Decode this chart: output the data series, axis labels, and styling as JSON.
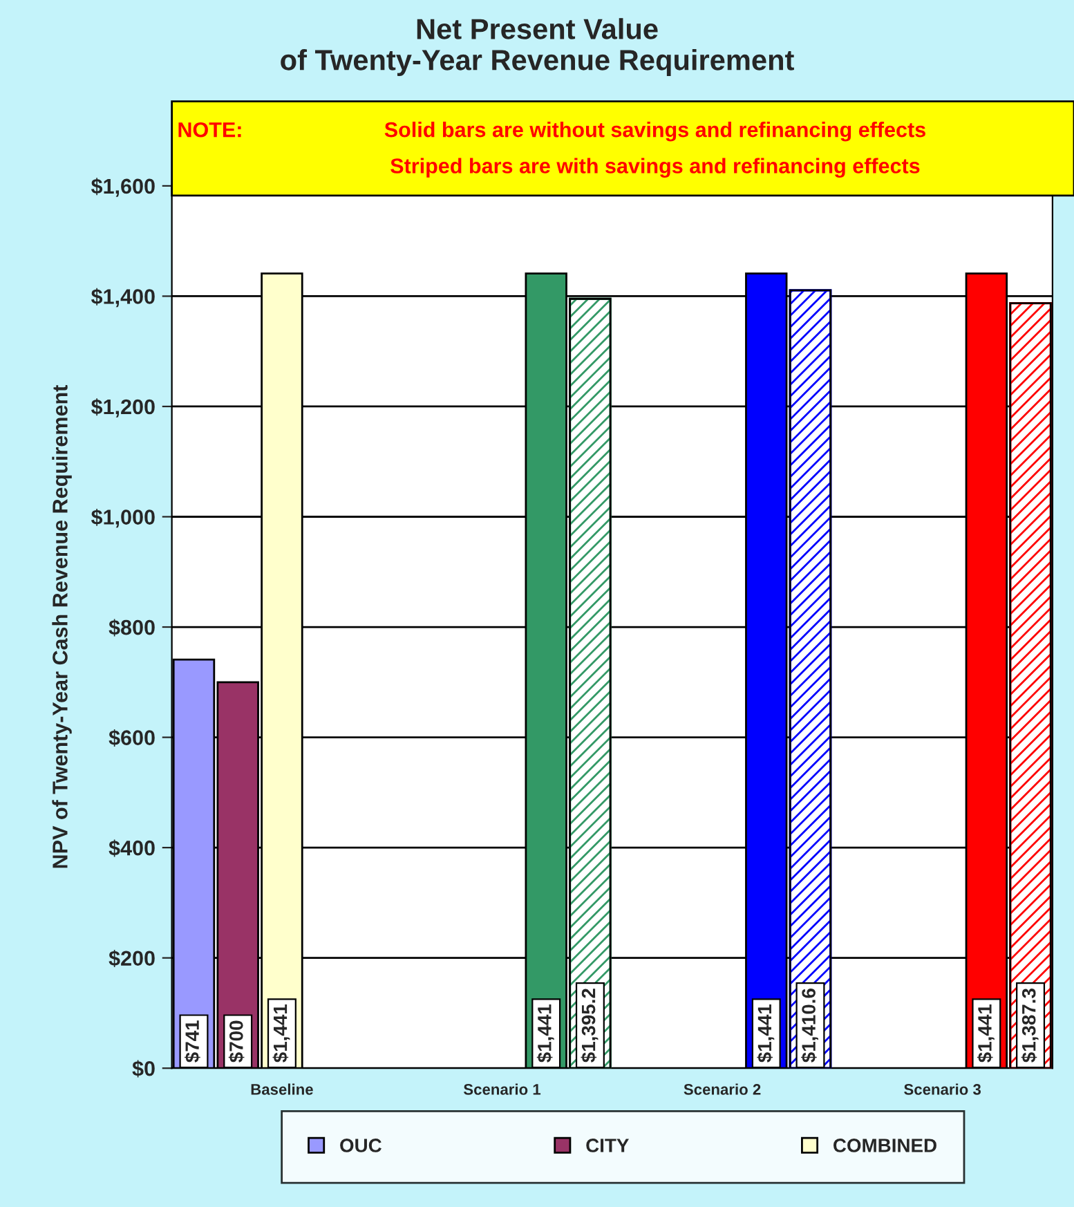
{
  "chart_data": {
    "type": "bar",
    "title": "Net Present Value\nof Twenty-Year Revenue Requirement",
    "ylabel": "NPV of Twenty-Year Cash Revenue Requirement",
    "categories": [
      "Baseline",
      "Scenario 1",
      "Scenario 2",
      "Scenario 3"
    ],
    "series": [
      {
        "name": "OUC",
        "color": "#9999ff",
        "values": [
          741,
          null,
          null,
          null
        ],
        "value_labels": [
          "$741",
          null,
          null,
          null
        ]
      },
      {
        "name": "CITY",
        "color": "#993366",
        "values": [
          700,
          null,
          null,
          null
        ],
        "value_labels": [
          "$700",
          null,
          null,
          null
        ]
      },
      {
        "name": "COMBINED",
        "color": "#ffffcc",
        "values": [
          1441,
          null,
          null,
          null
        ],
        "value_labels": [
          "$1,441",
          null,
          null,
          null
        ]
      },
      {
        "colors": [
          "#ffffff",
          "#339966",
          "#0000ff",
          "#ff0000"
        ],
        "values": [
          null,
          1441,
          1441,
          1441
        ],
        "value_labels": [
          null,
          "$1,441",
          "$1,441",
          "$1,441"
        ]
      },
      {
        "colors": [
          "#ffffff",
          "#339966",
          "#0000ff",
          "#ff0000"
        ],
        "values": [
          null,
          1395.2,
          1410.6,
          1387.3
        ],
        "value_labels": [
          null,
          "$1,395.2",
          "$1,410.6",
          "$1,387.3"
        ]
      }
    ],
    "ylim": [
      0,
      1600
    ],
    "yticks": [
      {
        "value": 0,
        "label": "$0"
      },
      {
        "value": 200,
        "label": "$200"
      },
      {
        "value": 400,
        "label": "$400"
      },
      {
        "value": 600,
        "label": "$600"
      },
      {
        "value": 800,
        "label": "$800"
      },
      {
        "value": 1000,
        "label": "$1,000"
      },
      {
        "value": 1200,
        "label": "$1,200"
      },
      {
        "value": 1400,
        "label": "$1,400"
      },
      {
        "value": 1600,
        "label": "$1,600"
      }
    ],
    "grid": "y",
    "legend": "bottom",
    "annotations": [
      "NOTE:",
      "Solid bars are without savings and refinancing effects",
      "Striped bars are with savings and refinancing effects"
    ]
  }
}
